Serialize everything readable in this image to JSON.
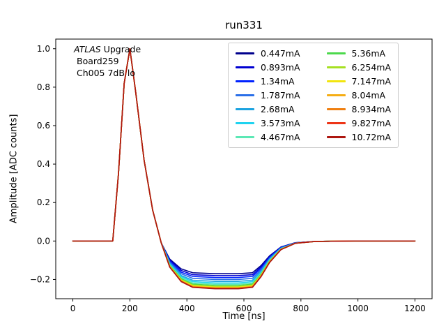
{
  "figure": {
    "annotation": {
      "line1_italic": "ATLAS",
      "line1_rest": " Upgrade",
      "line2": "Board259",
      "line3": "Ch005 7dB lo"
    }
  },
  "chart_data": {
    "type": "line",
    "title": "run331",
    "xlabel": "Time [ns]",
    "ylabel": "Amplitude [ADC counts]",
    "xlim": [
      -60,
      1260
    ],
    "ylim": [
      -0.3,
      1.05
    ],
    "xticks": [
      0,
      200,
      400,
      600,
      800,
      1000,
      1200
    ],
    "yticks": [
      -0.2,
      0.0,
      0.2,
      0.4,
      0.6,
      0.8,
      1.0
    ],
    "grid": false,
    "legend_position": "upper right",
    "legend_columns": 2,
    "x": [
      0,
      140,
      160,
      180,
      200,
      220,
      250,
      280,
      310,
      340,
      380,
      420,
      500,
      580,
      630,
      660,
      690,
      730,
      780,
      850,
      1000,
      1200
    ],
    "series": [
      {
        "name": "0.447mA",
        "color": "#00008c",
        "values": [
          0,
          0,
          0.35,
          0.82,
          1.0,
          0.78,
          0.42,
          0.16,
          -0.01,
          -0.094,
          -0.145,
          -0.165,
          -0.17,
          -0.17,
          -0.165,
          -0.128,
          -0.077,
          -0.031,
          -0.009,
          -0.002,
          0,
          0
        ]
      },
      {
        "name": "0.893mA",
        "color": "#0000d1",
        "values": [
          0,
          0,
          0.35,
          0.82,
          1.0,
          0.78,
          0.42,
          0.16,
          -0.01,
          -0.099,
          -0.153,
          -0.175,
          -0.18,
          -0.18,
          -0.175,
          -0.135,
          -0.081,
          -0.032,
          -0.009,
          -0.002,
          0,
          0
        ]
      },
      {
        "name": "1.34mA",
        "color": "#0022ff",
        "values": [
          0,
          0,
          0.35,
          0.82,
          1.0,
          0.78,
          0.42,
          0.16,
          -0.01,
          -0.105,
          -0.162,
          -0.184,
          -0.19,
          -0.19,
          -0.184,
          -0.143,
          -0.086,
          -0.034,
          -0.01,
          -0.002,
          0,
          0
        ]
      },
      {
        "name": "1.787mA",
        "color": "#2a6fe8",
        "values": [
          0,
          0,
          0.35,
          0.82,
          1.0,
          0.78,
          0.42,
          0.16,
          -0.01,
          -0.11,
          -0.17,
          -0.194,
          -0.2,
          -0.2,
          -0.194,
          -0.15,
          -0.09,
          -0.036,
          -0.01,
          -0.002,
          0,
          0
        ]
      },
      {
        "name": "2.68mA",
        "color": "#1ba3e0",
        "values": [
          0,
          0,
          0.35,
          0.82,
          1.0,
          0.78,
          0.42,
          0.16,
          -0.01,
          -0.116,
          -0.179,
          -0.204,
          -0.21,
          -0.21,
          -0.204,
          -0.158,
          -0.095,
          -0.038,
          -0.011,
          -0.002,
          0,
          0
        ]
      },
      {
        "name": "3.573mA",
        "color": "#1fd3f0",
        "values": [
          0,
          0,
          0.35,
          0.82,
          1.0,
          0.78,
          0.42,
          0.16,
          -0.01,
          -0.12,
          -0.185,
          -0.211,
          -0.218,
          -0.218,
          -0.211,
          -0.164,
          -0.098,
          -0.039,
          -0.011,
          -0.002,
          0,
          0
        ]
      },
      {
        "name": "4.467mA",
        "color": "#5ce8b5",
        "values": [
          0,
          0,
          0.35,
          0.82,
          1.0,
          0.78,
          0.42,
          0.16,
          -0.01,
          -0.124,
          -0.191,
          -0.218,
          -0.225,
          -0.225,
          -0.218,
          -0.169,
          -0.101,
          -0.041,
          -0.011,
          -0.002,
          0,
          0
        ]
      },
      {
        "name": "5.36mA",
        "color": "#4cd94c",
        "values": [
          0,
          0,
          0.35,
          0.82,
          1.0,
          0.78,
          0.42,
          0.16,
          -0.01,
          -0.127,
          -0.196,
          -0.224,
          -0.231,
          -0.231,
          -0.224,
          -0.173,
          -0.104,
          -0.042,
          -0.012,
          -0.002,
          0,
          0
        ]
      },
      {
        "name": "6.254mA",
        "color": "#a6e022",
        "values": [
          0,
          0,
          0.35,
          0.82,
          1.0,
          0.78,
          0.42,
          0.16,
          -0.01,
          -0.13,
          -0.201,
          -0.229,
          -0.236,
          -0.236,
          -0.229,
          -0.177,
          -0.106,
          -0.042,
          -0.012,
          -0.002,
          0,
          0
        ]
      },
      {
        "name": "7.147mA",
        "color": "#f2e50e",
        "values": [
          0,
          0,
          0.35,
          0.82,
          1.0,
          0.78,
          0.42,
          0.16,
          -0.01,
          -0.132,
          -0.204,
          -0.233,
          -0.24,
          -0.24,
          -0.233,
          -0.18,
          -0.108,
          -0.043,
          -0.012,
          -0.002,
          0,
          0
        ]
      },
      {
        "name": "8.04mA",
        "color": "#f5ad14",
        "values": [
          0,
          0,
          0.35,
          0.82,
          1.0,
          0.78,
          0.42,
          0.16,
          -0.01,
          -0.134,
          -0.207,
          -0.236,
          -0.243,
          -0.243,
          -0.236,
          -0.182,
          -0.109,
          -0.044,
          -0.012,
          -0.002,
          0,
          0
        ]
      },
      {
        "name": "8.934mA",
        "color": "#ef7f10",
        "values": [
          0,
          0,
          0.35,
          0.82,
          1.0,
          0.78,
          0.42,
          0.16,
          -0.01,
          -0.135,
          -0.208,
          -0.238,
          -0.245,
          -0.245,
          -0.238,
          -0.184,
          -0.11,
          -0.044,
          -0.012,
          -0.002,
          0,
          0
        ]
      },
      {
        "name": "9.827mA",
        "color": "#ed3517",
        "values": [
          0,
          0,
          0.35,
          0.82,
          1.0,
          0.78,
          0.42,
          0.16,
          -0.01,
          -0.136,
          -0.21,
          -0.24,
          -0.247,
          -0.247,
          -0.24,
          -0.185,
          -0.111,
          -0.044,
          -0.012,
          -0.002,
          0,
          0
        ]
      },
      {
        "name": "10.72mA",
        "color": "#ad1710",
        "values": [
          0,
          0,
          0.35,
          0.82,
          1.0,
          0.78,
          0.42,
          0.16,
          -0.01,
          -0.136,
          -0.211,
          -0.241,
          -0.248,
          -0.248,
          -0.241,
          -0.186,
          -0.112,
          -0.045,
          -0.012,
          -0.002,
          0,
          0
        ]
      }
    ]
  }
}
